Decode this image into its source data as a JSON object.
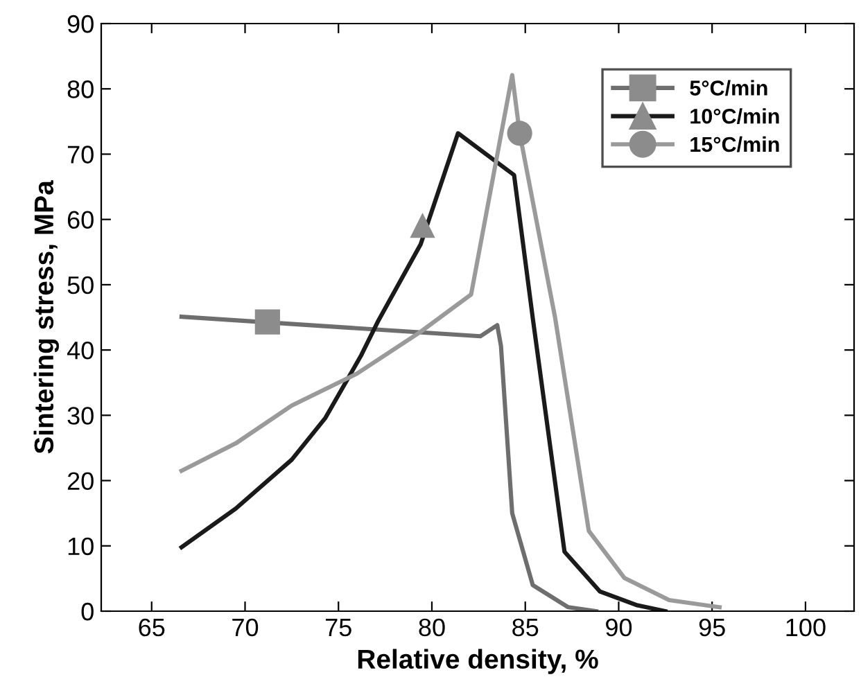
{
  "chart_data": {
    "type": "line",
    "xlabel": "Relative density, %",
    "ylabel": "Sintering stress, MPa",
    "xlim": [
      62.3,
      102.6
    ],
    "ylim": [
      0,
      90
    ],
    "xticks": [
      65,
      70,
      75,
      80,
      85,
      90,
      95,
      100
    ],
    "yticks": [
      0,
      10,
      20,
      30,
      40,
      50,
      60,
      70,
      80,
      90
    ],
    "grid": false,
    "legend": "top right",
    "line_style": "solid",
    "series": [
      {
        "name": "5°C/min",
        "color": "#6e6e6e",
        "x": [
          66.6,
          82.6,
          83.5,
          83.7,
          84.3,
          85.4,
          87.3,
          88.8
        ],
        "values": [
          45.1,
          42.1,
          43.8,
          40.6,
          15,
          4,
          0.6,
          0
        ]
      },
      {
        "name": "10°C/min",
        "color": "#1a1a1a",
        "x": [
          66.6,
          69.5,
          72.5,
          74.3,
          76.2,
          77.1,
          79.4,
          81.4,
          84.4,
          85.4,
          87.1,
          89.0,
          91.0,
          92.5
        ],
        "values": [
          9.8,
          15.7,
          23.2,
          29.6,
          39.1,
          44.3,
          56.2,
          73.2,
          66.8,
          44.9,
          9.1,
          3.0,
          0.9,
          0
        ]
      },
      {
        "name": "15°C/min",
        "color": "#9a9a9a",
        "x": [
          66.6,
          69.5,
          72.5,
          76.0,
          79.4,
          82.1,
          84.3,
          84.7,
          86.6,
          88.4,
          90.3,
          92.7,
          95.4
        ],
        "values": [
          21.5,
          25.7,
          31.5,
          36.4,
          42.8,
          48.5,
          82.1,
          73.2,
          44.9,
          12.3,
          5.1,
          1.7,
          0.6
        ]
      },
      {
        "type": "scatter",
        "color": "#8c8c8c",
        "marker": "square",
        "x": [
          71.2
        ],
        "values": [
          44.3
        ]
      },
      {
        "type": "scatter",
        "color": "#8c8c8c",
        "marker": "triangle",
        "x": [
          79.5
        ],
        "values": [
          59.1
        ]
      },
      {
        "type": "scatter",
        "color": "#8c8c8c",
        "marker": "circle",
        "x": [
          84.7
        ],
        "values": [
          73.2
        ]
      }
    ]
  }
}
